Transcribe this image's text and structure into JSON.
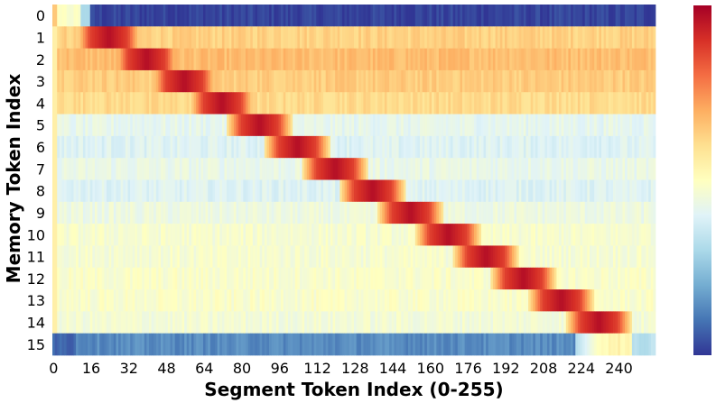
{
  "chart_data": {
    "type": "heatmap",
    "title": "",
    "xlabel": "Segment Token Index (0-255)",
    "ylabel": "Memory Token Index",
    "x_range": [
      0,
      255
    ],
    "rows": 16,
    "cols": 256,
    "x_ticks": [
      0,
      16,
      32,
      48,
      64,
      80,
      96,
      112,
      128,
      144,
      160,
      176,
      192,
      208,
      224,
      240
    ],
    "y_ticks": [
      0,
      1,
      2,
      3,
      4,
      5,
      6,
      7,
      8,
      9,
      10,
      11,
      12,
      13,
      14,
      15
    ],
    "colormap": "RdYlBu_r",
    "colorbar": {
      "shown": true,
      "tick_labels": []
    },
    "diagonal_hotspots": [
      {
        "row": 1,
        "x_start": 16,
        "x_end": 32
      },
      {
        "row": 2,
        "x_start": 32,
        "x_end": 48
      },
      {
        "row": 3,
        "x_start": 48,
        "x_end": 64
      },
      {
        "row": 4,
        "x_start": 64,
        "x_end": 80
      },
      {
        "row": 5,
        "x_start": 80,
        "x_end": 96
      },
      {
        "row": 6,
        "x_start": 96,
        "x_end": 112
      },
      {
        "row": 7,
        "x_start": 112,
        "x_end": 128
      },
      {
        "row": 8,
        "x_start": 128,
        "x_end": 144
      },
      {
        "row": 9,
        "x_start": 144,
        "x_end": 160
      },
      {
        "row": 10,
        "x_start": 160,
        "x_end": 176
      },
      {
        "row": 11,
        "x_start": 176,
        "x_end": 192
      },
      {
        "row": 12,
        "x_start": 192,
        "x_end": 208
      },
      {
        "row": 13,
        "x_start": 208,
        "x_end": 224
      },
      {
        "row": 14,
        "x_start": 224,
        "x_end": 240
      }
    ],
    "row_background_levels": [
      0.02,
      0.63,
      0.67,
      0.64,
      0.61,
      0.42,
      0.4,
      0.43,
      0.4,
      0.44,
      0.47,
      0.47,
      0.48,
      0.48,
      0.46,
      0.14
    ]
  }
}
